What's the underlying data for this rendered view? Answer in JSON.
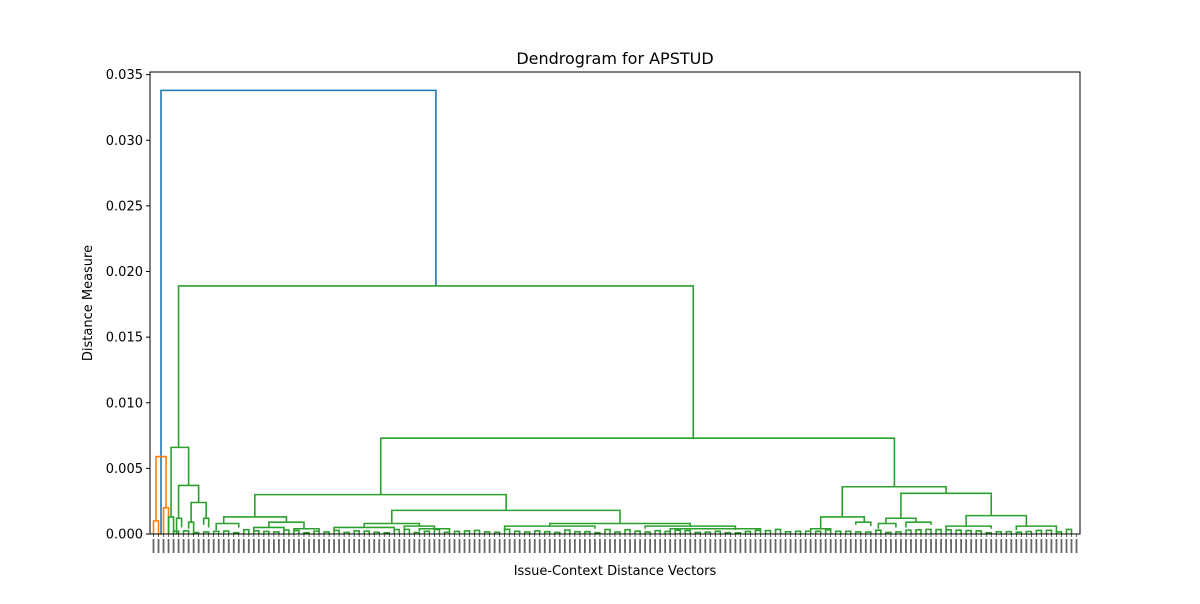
{
  "chart_data": {
    "type": "dendrogram",
    "title": "Dendrogram for APSTUD",
    "xlabel": "Issue-Context Distance Vectors",
    "ylabel": "Distance Measure",
    "ylim": [
      0,
      0.0352
    ],
    "yticks": [
      "0.000",
      "0.005",
      "0.010",
      "0.015",
      "0.020",
      "0.025",
      "0.030",
      "0.035"
    ],
    "ytick_values": [
      0,
      0.005,
      0.01,
      0.015,
      0.02,
      0.025,
      0.03,
      0.035
    ],
    "leaf_count": 185,
    "colors": {
      "root": "#1f77b4",
      "cluster_small": "#ff7f0e",
      "cluster_main": "#2ca02c"
    },
    "merges": [
      {
        "cluster": "root",
        "height": 0.0338,
        "left_x": 1.5,
        "right_x": 56.3
      },
      {
        "cluster": "cluster_small",
        "height": 0.0059,
        "left_x": 0.5,
        "right_x": 2.5,
        "left_h": 0.001,
        "right_h": 0.002
      },
      {
        "cluster": "cluster_small",
        "height": 0.002,
        "left_x": 2.0,
        "right_x": 3.0,
        "left_h": 0,
        "right_h": 0
      },
      {
        "cluster": "cluster_small",
        "height": 0.001,
        "left_x": 0.0,
        "right_x": 1.0,
        "left_h": 0,
        "right_h": 0
      },
      {
        "cluster": "cluster_main",
        "height": 0.0189,
        "left_x": 5.0,
        "right_x": 107.6,
        "left_h": 0.0066,
        "right_h": 0.0073
      },
      {
        "cluster": "cluster_main",
        "height": 0.0066,
        "left_x": 3.5,
        "right_x": 7.0,
        "left_h": 0.0013,
        "right_h": 0.0037
      },
      {
        "cluster": "cluster_main",
        "height": 0.0037,
        "left_x": 5.0,
        "right_x": 9.0,
        "left_h": 0.0012,
        "right_h": 0.0024
      },
      {
        "cluster": "cluster_main",
        "height": 0.0024,
        "left_x": 7.5,
        "right_x": 10.5,
        "left_h": 0.0009,
        "right_h": 0.0012
      },
      {
        "cluster": "cluster_main",
        "height": 0.0013,
        "left_x": 3.0,
        "right_x": 4.0,
        "left_h": 0,
        "right_h": 0
      },
      {
        "cluster": "cluster_main",
        "height": 0.0012,
        "left_x": 4.6,
        "right_x": 5.6,
        "left_h": 0,
        "right_h": 0.0005
      },
      {
        "cluster": "cluster_main",
        "height": 0.0009,
        "left_x": 7.0,
        "right_x": 8.0,
        "left_h": 0.0004,
        "right_h": 0
      },
      {
        "cluster": "cluster_main",
        "height": 0.0012,
        "left_x": 10.0,
        "right_x": 11.0,
        "left_h": 0.0007,
        "right_h": 0.0005
      },
      {
        "cluster": "cluster_main",
        "height": 0.0073,
        "left_x": 45.3,
        "right_x": 147.7,
        "left_h": 0.003,
        "right_h": 0.0036
      },
      {
        "cluster": "cluster_main",
        "height": 0.003,
        "left_x": 20.2,
        "right_x": 70.3,
        "left_h": 0.0013,
        "right_h": 0.0018
      },
      {
        "cluster": "cluster_main",
        "height": 0.0013,
        "left_x": 14.0,
        "right_x": 26.5,
        "left_h": 0.0008,
        "right_h": 0.0009
      },
      {
        "cluster": "cluster_main",
        "height": 0.0008,
        "left_x": 12.5,
        "right_x": 17.0,
        "left_h": 0.0003,
        "right_h": 0.0005
      },
      {
        "cluster": "cluster_main",
        "height": 0.0009,
        "left_x": 23.0,
        "right_x": 30.0,
        "left_h": 0.0005,
        "right_h": 0.0004
      },
      {
        "cluster": "cluster_main",
        "height": 0.0005,
        "left_x": 20.0,
        "right_x": 26.0,
        "left_h": 0.0003,
        "right_h": 0.0002
      },
      {
        "cluster": "cluster_main",
        "height": 0.0004,
        "left_x": 28.0,
        "right_x": 33.0,
        "left_h": 0.0002,
        "right_h": 0.0002
      },
      {
        "cluster": "cluster_main",
        "height": 0.0018,
        "left_x": 47.5,
        "right_x": 93.0,
        "left_h": 0.0008,
        "right_h": 0.0008
      },
      {
        "cluster": "cluster_main",
        "height": 0.0008,
        "left_x": 42.0,
        "right_x": 53.0,
        "left_h": 0.0005,
        "right_h": 0.0006
      },
      {
        "cluster": "cluster_main",
        "height": 0.0005,
        "left_x": 36.0,
        "right_x": 48.0,
        "left_h": 0.0003,
        "right_h": 0.0002
      },
      {
        "cluster": "cluster_main",
        "height": 0.0006,
        "left_x": 50.0,
        "right_x": 56.0,
        "left_h": 0.0003,
        "right_h": 0.0004
      },
      {
        "cluster": "cluster_main",
        "height": 0.0004,
        "left_x": 53.0,
        "right_x": 59.0,
        "left_h": 0.0002,
        "right_h": 0.0002
      },
      {
        "cluster": "cluster_main",
        "height": 0.0008,
        "left_x": 79.0,
        "right_x": 107.0,
        "left_h": 0.0006,
        "right_h": 0.0006
      },
      {
        "cluster": "cluster_main",
        "height": 0.0006,
        "left_x": 70.0,
        "right_x": 88.0,
        "left_h": 0.0003,
        "right_h": 0.0004
      },
      {
        "cluster": "cluster_main",
        "height": 0.0006,
        "left_x": 98.0,
        "right_x": 116.0,
        "left_h": 0.0004,
        "right_h": 0.0003
      },
      {
        "cluster": "cluster_main",
        "height": 0.0004,
        "left_x": 103.0,
        "right_x": 121.0,
        "left_h": 0.0002,
        "right_h": 0.0002
      },
      {
        "cluster": "cluster_main",
        "height": 0.0036,
        "left_x": 137.3,
        "right_x": 158.0,
        "left_h": 0.0013,
        "right_h": 0.0031
      },
      {
        "cluster": "cluster_main",
        "height": 0.0013,
        "left_x": 133.0,
        "right_x": 141.7,
        "left_h": 0.0004,
        "right_h": 0.0009
      },
      {
        "cluster": "cluster_main",
        "height": 0.0004,
        "left_x": 131.0,
        "right_x": 135.0,
        "left_h": 0.0002,
        "right_h": 0.0002
      },
      {
        "cluster": "cluster_main",
        "height": 0.0009,
        "left_x": 140.0,
        "right_x": 143.0,
        "left_h": 0.0007,
        "right_h": 0.0006
      },
      {
        "cluster": "cluster_main",
        "height": 0.0031,
        "left_x": 149.0,
        "right_x": 167.0,
        "left_h": 0.0012,
        "right_h": 0.0014
      },
      {
        "cluster": "cluster_main",
        "height": 0.0012,
        "left_x": 146.0,
        "right_x": 152.0,
        "left_h": 0.0008,
        "right_h": 0.0009
      },
      {
        "cluster": "cluster_main",
        "height": 0.0008,
        "left_x": 144.5,
        "right_x": 148.0,
        "left_h": 0.0004,
        "right_h": 0.0005
      },
      {
        "cluster": "cluster_main",
        "height": 0.0009,
        "left_x": 150.0,
        "right_x": 155.0,
        "left_h": 0.0005,
        "right_h": 0.0007
      },
      {
        "cluster": "cluster_main",
        "height": 0.0014,
        "left_x": 162.0,
        "right_x": 174.0,
        "left_h": 0.0006,
        "right_h": 0.0006
      },
      {
        "cluster": "cluster_main",
        "height": 0.0006,
        "left_x": 158.0,
        "right_x": 167.0,
        "left_h": 0.0003,
        "right_h": 0.0004
      },
      {
        "cluster": "cluster_main",
        "height": 0.0006,
        "left_x": 172.0,
        "right_x": 180.0,
        "left_h": 0.0003,
        "right_h": 0.0001
      }
    ]
  }
}
